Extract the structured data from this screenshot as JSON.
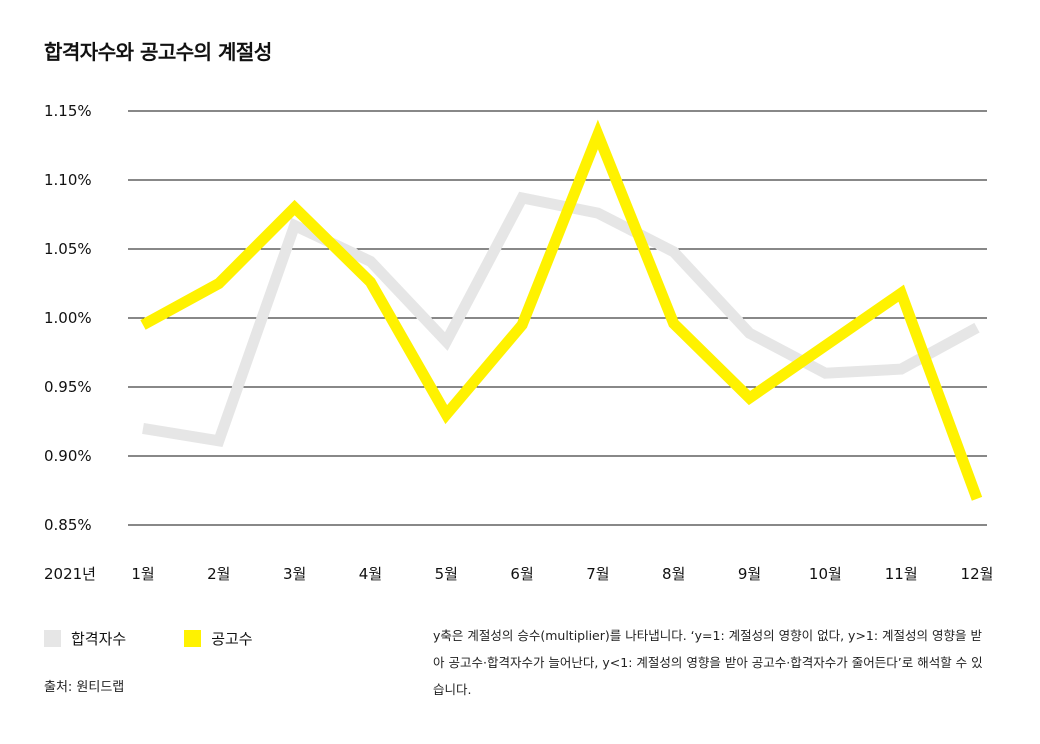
{
  "title": "합격자수와 공고수의 계절성",
  "year_label": "2021년",
  "legend": [
    {
      "label": "합격자수",
      "color": "#e6e6e6"
    },
    {
      "label": "공고수",
      "color": "#fff200"
    }
  ],
  "source": "출처: 원티드랩",
  "note": "y축은 계절성의 승수(multiplier)를 나타냅니다. ‘y=1: 계절성의 영향이 없다, y>1: 계절성의 영향을 받아 공고수·합격자수가 늘어난다, y<1: 계절성의 영향을 받아 공고수·합격자수가 줄어든다’로 해석할 수 있습니다.",
  "chart_data": {
    "type": "line",
    "categories": [
      "1월",
      "2월",
      "3월",
      "4월",
      "5월",
      "6월",
      "7월",
      "8월",
      "9월",
      "10월",
      "11월",
      "12월"
    ],
    "ylim": [
      0.85,
      1.15
    ],
    "yticks": [
      0.85,
      0.9,
      0.95,
      1.0,
      1.05,
      1.1,
      1.15
    ],
    "ytick_labels": [
      "0.85%",
      "0.90%",
      "0.95%",
      "1.00%",
      "1.05%",
      "1.10%",
      "1.15%"
    ],
    "grid": true,
    "series": [
      {
        "name": "합격자수",
        "color": "#e6e6e6",
        "values": [
          0.92,
          0.911,
          1.067,
          1.041,
          0.983,
          1.087,
          1.076,
          1.048,
          0.989,
          0.96,
          0.963,
          0.993
        ]
      },
      {
        "name": "공고수",
        "color": "#fff200",
        "values": [
          0.995,
          1.025,
          1.08,
          1.026,
          0.93,
          0.995,
          1.133,
          0.996,
          0.942,
          0.98,
          1.018,
          0.869
        ]
      }
    ]
  }
}
